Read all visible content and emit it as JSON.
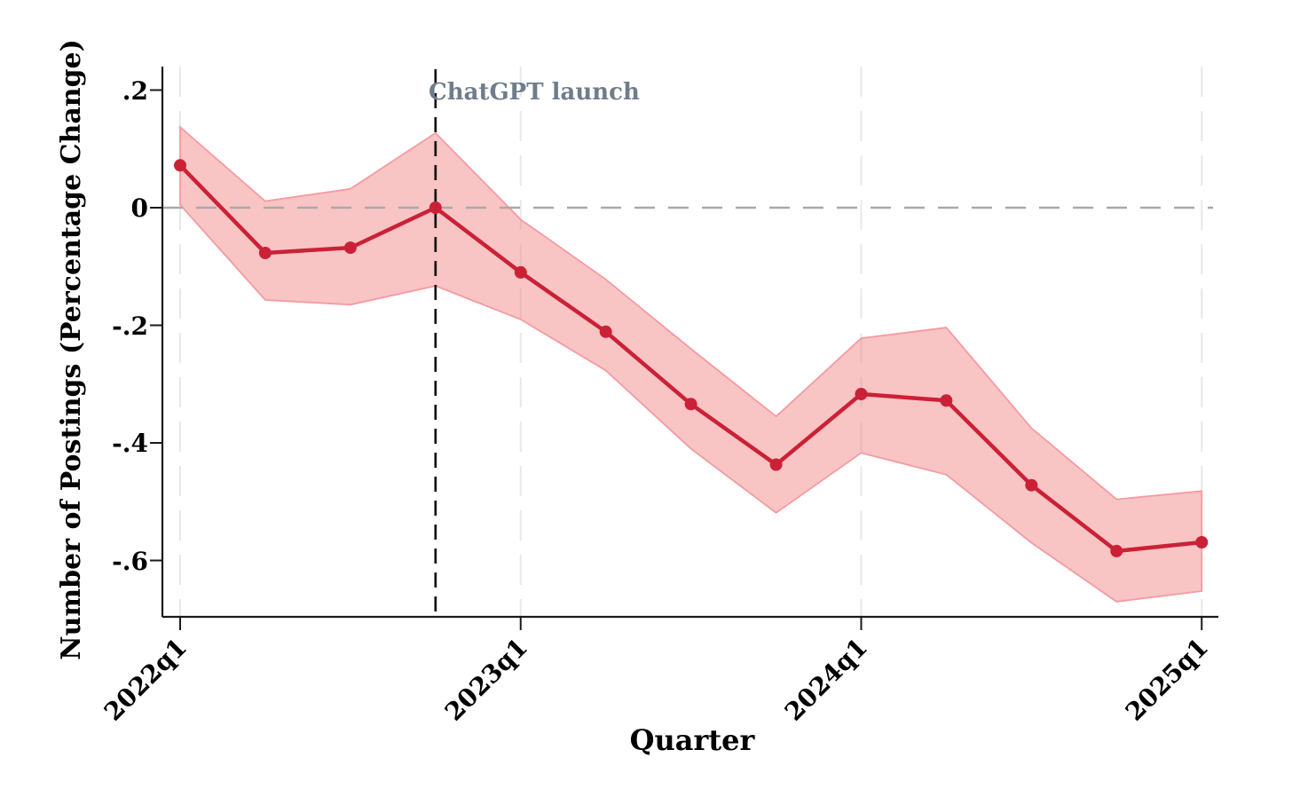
{
  "chart_data": {
    "type": "line",
    "title": "",
    "xlabel": "Quarter",
    "ylabel": "Number of Postings (Percentage Change)",
    "annotation": "ChatGPT launch",
    "annotation_color": "#6f7c8b",
    "x_tick_labels": [
      "2022q1",
      "2023q1",
      "2024q1",
      "2025q1"
    ],
    "y_tick_labels": [
      ".2",
      "0",
      "-.2",
      "-.4",
      "-.6"
    ],
    "y_tick_values": [
      0.2,
      0,
      -0.2,
      -0.4,
      -0.6
    ],
    "ylim": [
      -0.7,
      0.24
    ],
    "grid": "vertical-dashed-at-year-ticks",
    "legend": "none",
    "categories": [
      "2022q1",
      "2022q2",
      "2022q3",
      "2022q4",
      "2023q1",
      "2023q2",
      "2023q3",
      "2023q4",
      "2024q1",
      "2024q2",
      "2024q3",
      "2024q4",
      "2025q1"
    ],
    "series": [
      {
        "name": "point-estimate",
        "values": [
          0.072,
          -0.077,
          -0.068,
          0.0,
          -0.11,
          -0.211,
          -0.334,
          -0.437,
          -0.317,
          -0.328,
          -0.472,
          -0.584,
          -0.569
        ]
      },
      {
        "name": "ci-upper",
        "values": [
          0.137,
          0.011,
          0.032,
          0.127,
          -0.02,
          -0.122,
          -0.24,
          -0.355,
          -0.222,
          -0.204,
          -0.375,
          -0.496,
          -0.482
        ]
      },
      {
        "name": "ci-lower",
        "values": [
          0.005,
          -0.157,
          -0.165,
          -0.133,
          -0.19,
          -0.277,
          -0.41,
          -0.519,
          -0.417,
          -0.454,
          -0.57,
          -0.67,
          -0.652
        ]
      }
    ],
    "vline_category": "2022q4",
    "hline_value": 0,
    "colors": {
      "line": "#cb2136",
      "marker": "#cb2136",
      "band_fill": "rgba(243,130,130,0.47)",
      "band_edge": "#f49ba1",
      "zero_line": "#a9a9a9",
      "event_line": "#141414",
      "gridline": "#e8e8e8",
      "axis": "#1a1a1a"
    }
  }
}
